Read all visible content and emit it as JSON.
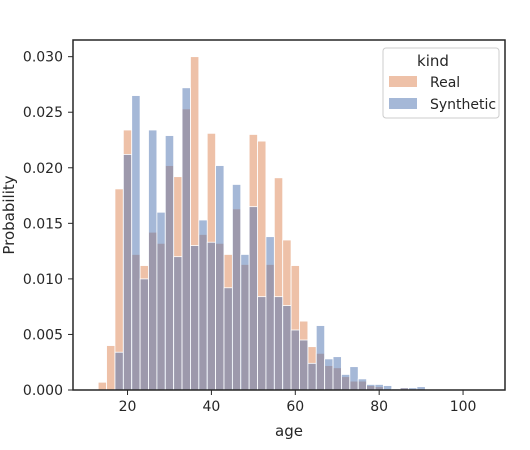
{
  "chart_data": {
    "type": "histogram",
    "xlabel": "age",
    "ylabel": "Probability",
    "xlim": [
      7,
      110
    ],
    "ylim": [
      0,
      0.0315
    ],
    "bin_width": 2,
    "x_ticks": [
      20,
      40,
      60,
      80,
      100
    ],
    "y_ticks": [
      0.0,
      0.005,
      0.01,
      0.015,
      0.02,
      0.025,
      0.03
    ],
    "x_tick_labels": [
      "20",
      "40",
      "60",
      "80",
      "100"
    ],
    "y_tick_labels": [
      "0.000",
      "0.005",
      "0.010",
      "0.015",
      "0.020",
      "0.025",
      "0.030"
    ],
    "grid": false,
    "legend": {
      "title": "kind",
      "position": "top-right",
      "entries": [
        "Real",
        "Synthetic"
      ]
    },
    "series": [
      {
        "name": "Real",
        "color": "#dd8452",
        "bins_start": [
          13,
          15,
          17,
          19,
          21,
          23,
          25,
          27,
          29,
          31,
          33,
          35,
          37,
          39,
          41,
          43,
          45,
          47,
          49,
          51,
          53,
          55,
          57,
          59,
          61,
          63,
          65,
          67,
          69,
          71,
          73,
          75,
          77,
          79,
          81,
          83,
          85,
          87,
          89
        ],
        "values": [
          0.0007,
          0.004,
          0.0181,
          0.0234,
          0.0122,
          0.0112,
          0.0142,
          0.0132,
          0.0202,
          0.0192,
          0.0253,
          0.03,
          0.014,
          0.0231,
          0.0132,
          0.0122,
          0.0163,
          0.0113,
          0.023,
          0.0224,
          0.0113,
          0.0191,
          0.0135,
          0.0112,
          0.0062,
          0.0039,
          0.0033,
          0.0022,
          0.002,
          0.0012,
          0.0008,
          0.0008,
          0.0004,
          0.0003,
          0.0001,
          0.0001,
          0.0002,
          0.0001,
          0.0001
        ]
      },
      {
        "name": "Synthetic",
        "color": "#4c72b0",
        "bins_start": [
          13,
          15,
          17,
          19,
          21,
          23,
          25,
          27,
          29,
          31,
          33,
          35,
          37,
          39,
          41,
          43,
          45,
          47,
          49,
          51,
          53,
          55,
          57,
          59,
          61,
          63,
          65,
          67,
          69,
          71,
          73,
          75,
          77,
          79,
          81,
          83,
          85,
          87,
          89
        ],
        "values": [
          0.0,
          0.0,
          0.0034,
          0.0212,
          0.0265,
          0.01,
          0.0234,
          0.016,
          0.0229,
          0.012,
          0.0272,
          0.013,
          0.0153,
          0.0133,
          0.0202,
          0.0092,
          0.0185,
          0.0122,
          0.0165,
          0.0084,
          0.0138,
          0.0084,
          0.0076,
          0.0054,
          0.0045,
          0.0024,
          0.0058,
          0.0028,
          0.003,
          0.0014,
          0.0021,
          0.001,
          0.0005,
          0.0005,
          0.0004,
          0.0001,
          0.0002,
          0.0002,
          0.0003
        ]
      }
    ]
  }
}
